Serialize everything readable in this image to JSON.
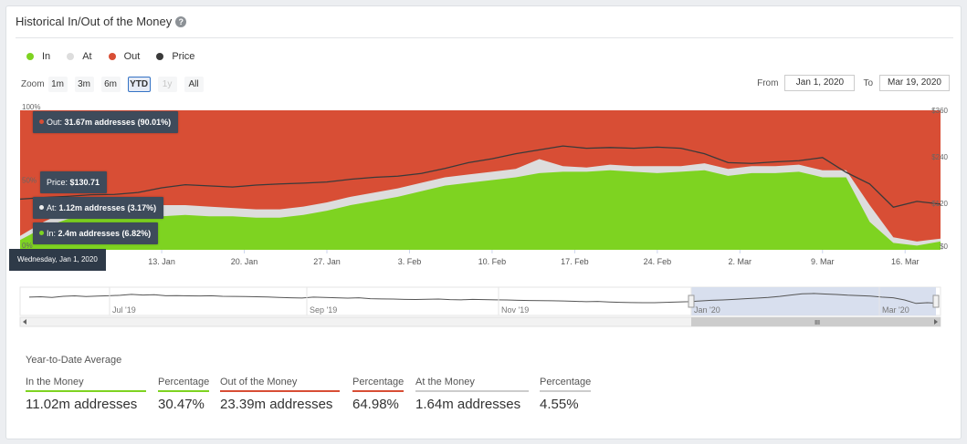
{
  "title": "Historical In/Out of the Money",
  "help_icon": "?",
  "legend": [
    {
      "label": "In",
      "color": "#7ed321"
    },
    {
      "label": "At",
      "color": "#dddddd"
    },
    {
      "label": "Out",
      "color": "#d84e35"
    },
    {
      "label": "Price",
      "color": "#3a3a3a"
    }
  ],
  "zoom": {
    "label": "Zoom",
    "buttons": [
      {
        "label": "1m",
        "state": "normal"
      },
      {
        "label": "3m",
        "state": "normal"
      },
      {
        "label": "6m",
        "state": "normal"
      },
      {
        "label": "YTD",
        "state": "active"
      },
      {
        "label": "1y",
        "state": "disabled"
      },
      {
        "label": "All",
        "state": "normal"
      }
    ]
  },
  "range": {
    "from_label": "From",
    "from_value": "Jan 1, 2020",
    "to_label": "To",
    "to_value": "Mar 19, 2020"
  },
  "tooltips": {
    "out": {
      "prefix": "Out: ",
      "value": "31.67m addresses (90.01%)"
    },
    "price": {
      "prefix": "Price: ",
      "value": "$130.71"
    },
    "at": {
      "prefix": "At: ",
      "value": "1.12m addresses (3.17%)"
    },
    "in": {
      "prefix": "In: ",
      "value": "2.4m addresses (6.82%)"
    },
    "date": "Wednesday, Jan 1, 2020"
  },
  "chart_data": {
    "type": "area",
    "stacking": "percent",
    "x": [
      "Jan 1",
      "Jan 3",
      "Jan 5",
      "Jan 7",
      "Jan 9",
      "Jan 11",
      "Jan 13",
      "Jan 15",
      "Jan 17",
      "Jan 19",
      "Jan 21",
      "Jan 23",
      "Jan 25",
      "Jan 27",
      "Jan 29",
      "Jan 31",
      "Feb 2",
      "Feb 4",
      "Feb 6",
      "Feb 8",
      "Feb 10",
      "Feb 12",
      "Feb 14",
      "Feb 16",
      "Feb 18",
      "Feb 20",
      "Feb 22",
      "Feb 24",
      "Feb 26",
      "Feb 28",
      "Mar 1",
      "Mar 3",
      "Mar 5",
      "Mar 7",
      "Mar 9",
      "Mar 11",
      "Mar 13",
      "Mar 15",
      "Mar 17",
      "Mar 19"
    ],
    "x_tick_labels": [
      "13. Jan",
      "20. Jan",
      "27. Jan",
      "3. Feb",
      "10. Feb",
      "17. Feb",
      "24. Feb",
      "2. Mar",
      "9. Mar",
      "16. Mar"
    ],
    "x_tick_dates": [
      "Jan 13",
      "Jan 20",
      "Jan 27",
      "Feb 3",
      "Feb 10",
      "Feb 17",
      "Feb 24",
      "Mar 2",
      "Mar 9",
      "Mar 16"
    ],
    "series": [
      {
        "name": "In",
        "color": "#7ed321",
        "values": [
          7,
          16,
          22,
          25,
          25,
          24,
          24,
          25,
          24,
          24,
          23,
          23,
          25,
          28,
          32,
          35,
          38,
          42,
          46,
          48,
          50,
          52,
          55,
          56,
          56,
          57,
          56,
          55,
          56,
          57,
          53,
          55,
          55,
          56,
          52,
          52,
          20,
          5,
          3,
          6
        ]
      },
      {
        "name": "At",
        "color": "#dddddd",
        "values": [
          3,
          4,
          6,
          5,
          5,
          6,
          8,
          7,
          7,
          6,
          6,
          6,
          6,
          6,
          6,
          6,
          6,
          6,
          6,
          6,
          6,
          6,
          10,
          4,
          3,
          4,
          4,
          5,
          4,
          5,
          5,
          5,
          5,
          5,
          5,
          5,
          12,
          4,
          3,
          2
        ]
      },
      {
        "name": "Out",
        "color": "#d84e35",
        "values": [
          90,
          80,
          72,
          70,
          70,
          70,
          68,
          68,
          69,
          70,
          71,
          71,
          69,
          66,
          62,
          59,
          56,
          52,
          48,
          46,
          44,
          42,
          35,
          40,
          41,
          39,
          40,
          40,
          40,
          38,
          42,
          40,
          40,
          39,
          43,
          43,
          68,
          91,
          94,
          92
        ]
      },
      {
        "name": "Price",
        "color": "#3a3a3a",
        "axis": "right",
        "values": [
          130.71,
          135,
          138,
          142,
          143,
          148,
          160,
          168,
          165,
          162,
          167,
          170,
          172,
          175,
          182,
          187,
          190,
          197,
          210,
          225,
          235,
          248,
          258,
          268,
          262,
          264,
          262,
          265,
          262,
          248,
          225,
          223,
          227,
          230,
          238,
          200,
          170,
          110,
          125,
          118
        ]
      }
    ],
    "y_left": {
      "min": 0,
      "max": 100,
      "tick_labels": [
        "0%",
        "50%",
        "100%"
      ]
    },
    "y_right": {
      "min": 0,
      "max": 360,
      "tick_labels": [
        "$0",
        "$120",
        "$240",
        "$360"
      ]
    }
  },
  "navigator": {
    "labels": [
      "Jul '19",
      "Sep '19",
      "Nov '19",
      "Jan '20",
      "Mar '20"
    ],
    "scroll_icon": "III"
  },
  "stats": {
    "title": "Year-to-Date Average",
    "columns": [
      {
        "header": "In the Money",
        "value": "11.02m addresses",
        "color": "#7ed321"
      },
      {
        "header": "Percentage",
        "value": "30.47%",
        "color": "#7ed321"
      },
      {
        "header": "Out of the Money",
        "value": "23.39m addresses",
        "color": "#d84e35"
      },
      {
        "header": "Percentage",
        "value": "64.98%",
        "color": "#d84e35"
      },
      {
        "header": "At the Money",
        "value": "1.64m addresses",
        "color": "#cccccc"
      },
      {
        "header": "Percentage",
        "value": "4.55%",
        "color": "#cccccc"
      }
    ]
  }
}
